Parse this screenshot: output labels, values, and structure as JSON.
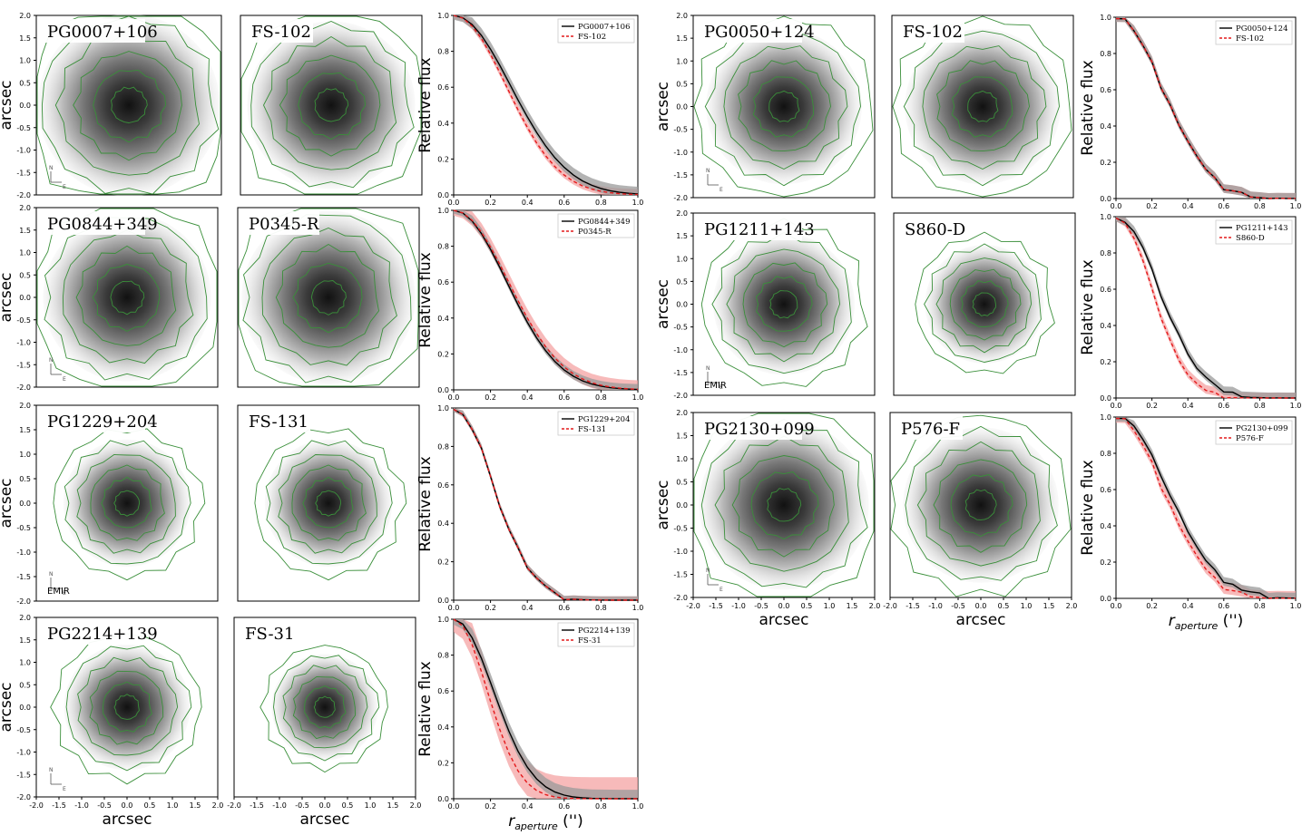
{
  "chart_data": {
    "type": "line",
    "image_axes": {
      "xlabel": "arcsec",
      "ylabel": "arcsec",
      "ticks": [
        "-2.0",
        "-1.5",
        "-1.0",
        "-0.5",
        "0.0",
        "0.5",
        "1.0",
        "1.5",
        "2.0"
      ]
    },
    "profile_axes": {
      "xlabel_main": "r",
      "xlabel_sub": "aperture",
      "xlabel_unit": "('')",
      "ylabel": "Relative flux",
      "xticks": [
        "0.0",
        "0.2",
        "0.4",
        "0.6",
        "0.8",
        "1.0"
      ],
      "yticks": [
        "0.0",
        "0.2",
        "0.4",
        "0.6",
        "0.8",
        "1.0"
      ],
      "xlim": [
        0,
        1
      ],
      "ylim": [
        0,
        1
      ]
    },
    "panels": [
      {
        "science": "PG0007+106",
        "reference": "FS-102",
        "ref_width": 0.6,
        "sci_width": 0.65,
        "steps": false,
        "ref_band": 0.03,
        "sci_band": 0.04,
        "notes": []
      },
      {
        "science": "PG0844+349",
        "reference": "P0345-R",
        "ref_width": 0.62,
        "sci_width": 0.6,
        "steps": false,
        "ref_band": 0.05,
        "sci_band": 0.03,
        "notes": []
      },
      {
        "science": "PG1229+204",
        "reference": "FS-131",
        "ref_width": 0.45,
        "sci_width": 0.45,
        "steps": true,
        "ref_band": 0.02,
        "sci_band": 0.02,
        "notes": [
          "EMIR"
        ]
      },
      {
        "science": "PG2214+139",
        "reference": "FS-31",
        "ref_width": 0.38,
        "sci_width": 0.45,
        "steps": false,
        "ref_band": 0.12,
        "sci_band": 0.05,
        "notes": []
      },
      {
        "science": "PG0050+124",
        "reference": "FS-102",
        "ref_width": 0.55,
        "sci_width": 0.55,
        "steps": true,
        "ref_band": 0.03,
        "sci_band": 0.03,
        "notes": []
      },
      {
        "science": "PG1211+143",
        "reference": "S860-D",
        "ref_width": 0.42,
        "sci_width": 0.5,
        "steps": true,
        "ref_band": 0.03,
        "sci_band": 0.03,
        "notes": [
          "EMIR"
        ]
      },
      {
        "science": "PG2130+099",
        "reference": "P576-F",
        "ref_width": 0.55,
        "sci_width": 0.6,
        "steps": true,
        "ref_band": 0.04,
        "sci_band": 0.03,
        "notes": []
      }
    ],
    "curve_samples_r": [
      0.0,
      0.05,
      0.1,
      0.15,
      0.2,
      0.25,
      0.3,
      0.35,
      0.4,
      0.45,
      0.5,
      0.55,
      0.6,
      0.65,
      0.7,
      0.75,
      0.8,
      0.85,
      0.9,
      0.95,
      1.0
    ],
    "colors": {
      "science": "#000000",
      "reference": "#e41a1c",
      "science_band": "#9a9a9a",
      "reference_band": "#f4a3a3",
      "contour": "#3a8f3a"
    },
    "legend_position": "upper-right",
    "compass": [
      "N",
      "E"
    ]
  }
}
